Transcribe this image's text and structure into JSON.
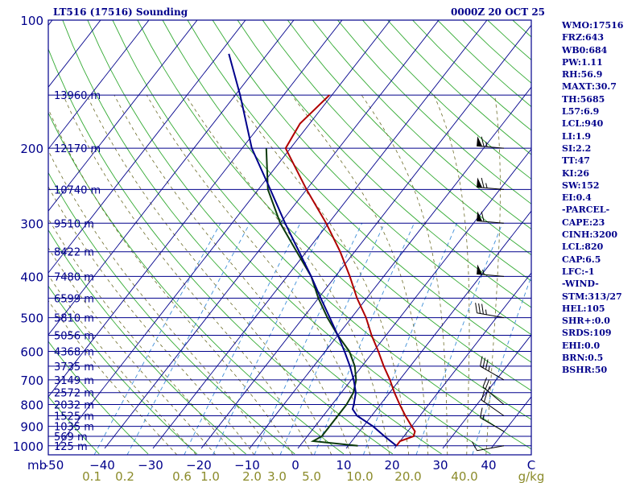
{
  "chart_data": {
    "type": "skew-t log-p sounding",
    "title_left": "LT516 (17516) Sounding",
    "title_right": "0000Z 20 OCT 25",
    "p_top": 100,
    "p_bottom": 1050,
    "pressure_labels": [
      {
        "p": 100,
        "label": "100"
      },
      {
        "p": 200,
        "label": "200"
      },
      {
        "p": 300,
        "label": "300"
      },
      {
        "p": 400,
        "label": "400"
      },
      {
        "p": 500,
        "label": "500"
      },
      {
        "p": 600,
        "label": "600"
      },
      {
        "p": 700,
        "label": "700"
      },
      {
        "p": 800,
        "label": "800"
      },
      {
        "p": 900,
        "label": "900"
      },
      {
        "p": 1000,
        "label": "1000"
      }
    ],
    "height_labels": [
      {
        "p": 150,
        "label": "13960 m"
      },
      {
        "p": 200,
        "label": "12170 m"
      },
      {
        "p": 250,
        "label": "10740 m"
      },
      {
        "p": 300,
        "label": "9510 m"
      },
      {
        "p": 350,
        "label": "8422 m"
      },
      {
        "p": 400,
        "label": "7480 m"
      },
      {
        "p": 450,
        "label": "6599 m"
      },
      {
        "p": 500,
        "label": "5810 m"
      },
      {
        "p": 550,
        "label": "5056 m"
      },
      {
        "p": 600,
        "label": "4368 m"
      },
      {
        "p": 650,
        "label": "3735 m"
      },
      {
        "p": 700,
        "label": "3149 m"
      },
      {
        "p": 750,
        "label": "2572 m"
      },
      {
        "p": 800,
        "label": "2032 m"
      },
      {
        "p": 850,
        "label": "1525 m"
      },
      {
        "p": 900,
        "label": "1035 m"
      },
      {
        "p": 950,
        "label": "569 m"
      },
      {
        "p": 1000,
        "label": "125 m"
      }
    ],
    "temp_axis_label": "mb",
    "temp_ticks": [
      -50,
      -40,
      -30,
      -20,
      -10,
      0,
      10,
      20,
      30,
      40
    ],
    "temp_tick_labels": [
      "-50",
      "−40",
      "−30",
      "−20",
      "−10",
      "0",
      "10",
      "20",
      "30",
      "40"
    ],
    "temp_end_label": "C",
    "mixing_ratio_labels": [
      "0.1",
      "0.2",
      "0.6",
      "1.0",
      "2.0",
      "3.0",
      "5.0",
      "10.0",
      "20.0",
      "40.0"
    ],
    "mixing_ratio_values": [
      0.1,
      0.2,
      0.6,
      1.0,
      2.0,
      3.0,
      5.0,
      10.0,
      20.0,
      40.0
    ],
    "mixing_ratio_unit": "g/kg",
    "series": [
      {
        "name": "temperature",
        "color": "#b00000",
        "points": [
          [
            1000,
            20
          ],
          [
            975,
            20
          ],
          [
            950,
            22
          ],
          [
            925,
            21.5
          ],
          [
            900,
            20
          ],
          [
            850,
            17
          ],
          [
            800,
            14
          ],
          [
            750,
            11
          ],
          [
            700,
            8
          ],
          [
            650,
            4.5
          ],
          [
            600,
            1
          ],
          [
            550,
            -3
          ],
          [
            500,
            -7
          ],
          [
            450,
            -12
          ],
          [
            400,
            -17
          ],
          [
            350,
            -23
          ],
          [
            300,
            -30.5
          ],
          [
            250,
            -40
          ],
          [
            200,
            -51
          ],
          [
            175,
            -52
          ],
          [
            150,
            -50.5
          ]
        ]
      },
      {
        "name": "dewpoint",
        "color": "#0c3a0c",
        "points": [
          [
            1000,
            12
          ],
          [
            975,
            2
          ],
          [
            950,
            3
          ],
          [
            900,
            3
          ],
          [
            850,
            3
          ],
          [
            800,
            3
          ],
          [
            750,
            2.5
          ],
          [
            700,
            1
          ],
          [
            650,
            -1.5
          ],
          [
            600,
            -5
          ],
          [
            550,
            -10
          ],
          [
            500,
            -15
          ],
          [
            450,
            -20
          ],
          [
            400,
            -25
          ],
          [
            350,
            -32
          ],
          [
            300,
            -40
          ],
          [
            250,
            -48
          ],
          [
            200,
            -55
          ]
        ]
      },
      {
        "name": "parcel",
        "color": "#00008b",
        "points": [
          [
            1000,
            20
          ],
          [
            950,
            16
          ],
          [
            900,
            12
          ],
          [
            850,
            7
          ],
          [
            820,
            5
          ],
          [
            800,
            4.5
          ],
          [
            750,
            3
          ],
          [
            700,
            0.5
          ],
          [
            650,
            -2.5
          ],
          [
            600,
            -6
          ],
          [
            550,
            -10
          ],
          [
            500,
            -14.5
          ],
          [
            450,
            -19.5
          ],
          [
            400,
            -25
          ],
          [
            350,
            -31.5
          ],
          [
            300,
            -39
          ],
          [
            250,
            -47.5
          ],
          [
            200,
            -58
          ],
          [
            150,
            -69
          ],
          [
            120,
            -78
          ]
        ]
      }
    ],
    "wind_barbs": [
      {
        "p": 1000,
        "dir": 260,
        "spd": 10
      },
      {
        "p": 925,
        "dir": 300,
        "spd": 15
      },
      {
        "p": 850,
        "dir": 305,
        "spd": 20
      },
      {
        "p": 800,
        "dir": 310,
        "spd": 25
      },
      {
        "p": 700,
        "dir": 300,
        "spd": 35
      },
      {
        "p": 500,
        "dir": 280,
        "spd": 35
      },
      {
        "p": 400,
        "dir": 275,
        "spd": 55
      },
      {
        "p": 300,
        "dir": 275,
        "spd": 60
      },
      {
        "p": 250,
        "dir": 275,
        "spd": 65
      },
      {
        "p": 200,
        "dir": 275,
        "spd": 65
      }
    ]
  },
  "indices": [
    "WMO:17516",
    "FRZ:643",
    "WB0:684",
    "PW:1.11",
    "RH:56.9",
    "MAXT:30.7",
    "TH:5685",
    "L57:6.9",
    "LCL:940",
    "LI:1.9",
    "SI:2.2",
    "TT:47",
    "KI:26",
    "SW:152",
    "EI:0.4",
    "-PARCEL-",
    "CAPE:23",
    "CINH:3200",
    "LCL:820",
    "CAP:6.5",
    "LFC:-1",
    "-WIND-",
    "STM:313/27",
    "HEL:105",
    "SHR+:0.0",
    "SRDS:109",
    "EHI:0.0",
    "BRN:0.5",
    "BSHR:50"
  ],
  "colors": {
    "frame": "#00008b",
    "isobar": "#00008b",
    "isotherm": "#00008b",
    "dry_adiabat": "#33aa33",
    "moist_adiabat": "#6d6d2a",
    "mixing_ratio": "#3f8fd8",
    "text": "#00008b",
    "bottom_axis": "#8b8b2a"
  }
}
